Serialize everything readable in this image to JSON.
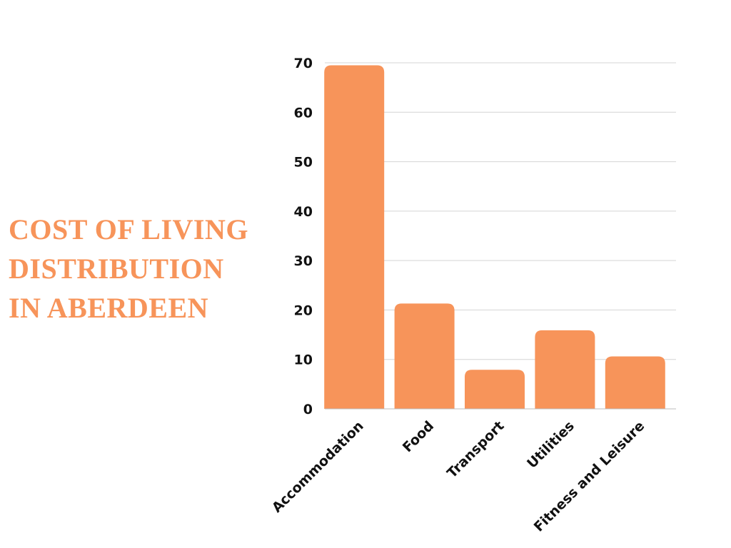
{
  "title_lines": [
    "COST OF LIVING",
    "DISTRIBUTION",
    "IN ABERDEEN"
  ],
  "colors": {
    "accent": "#F7945A",
    "title": "#F7945A"
  },
  "chart_data": {
    "type": "bar",
    "title": "COST OF LIVING DISTRIBUTION IN ABERDEEN",
    "categories": [
      "Accommodation",
      "Food",
      "Transport",
      "Utilities",
      "Fitness and Leisure"
    ],
    "values": [
      69.5,
      21.3,
      7.9,
      15.9,
      10.6
    ],
    "ylim": [
      0,
      70
    ],
    "yticks": [
      0,
      10,
      20,
      30,
      40,
      50,
      60,
      70
    ],
    "xlabel": "",
    "ylabel": "",
    "grid": true,
    "legend": "none"
  }
}
